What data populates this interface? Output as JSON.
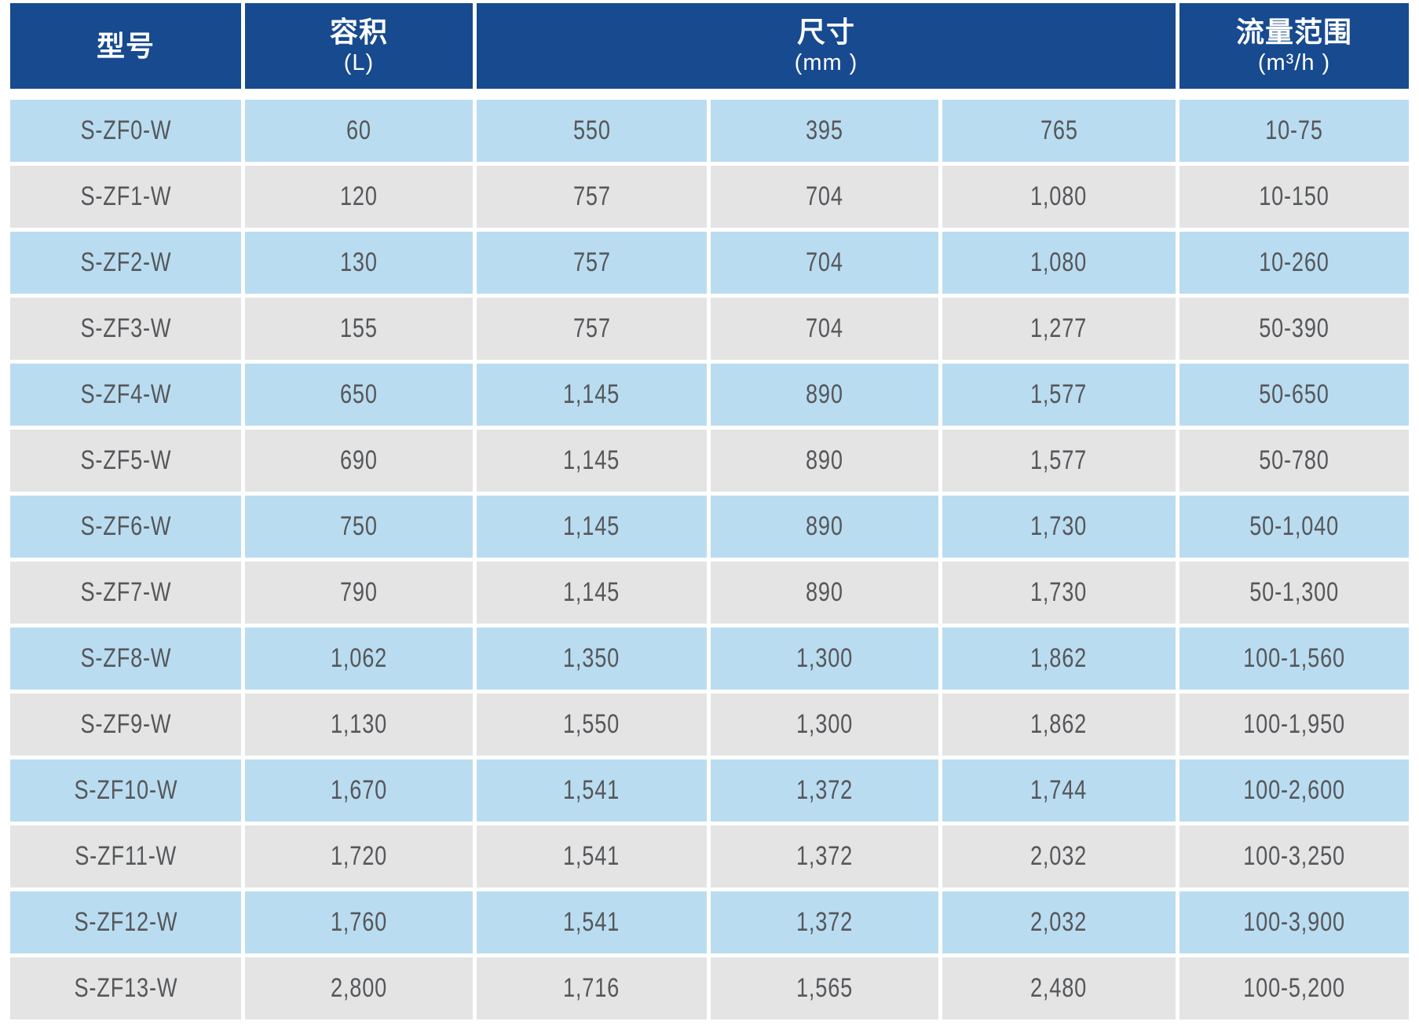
{
  "colors": {
    "header_bg": "#174a8f",
    "header_text": "#ffffff",
    "row_blue": "#badcf0",
    "row_gray": "#e4e4e4",
    "cell_text": "#55575a",
    "page_bg": "#ffffff"
  },
  "chart_data": {
    "type": "table",
    "columns": [
      {
        "label": "型号",
        "sublabel": ""
      },
      {
        "label": "容积",
        "sublabel": "(L)"
      },
      {
        "label": "尺寸",
        "sublabel": "(mm )",
        "span": 3
      },
      {
        "label": "流量范围",
        "sublabel": "(m³/h )"
      }
    ],
    "rows": [
      {
        "model": "S-ZF0-W",
        "volume": "60",
        "dim1": "550",
        "dim2": "395",
        "dim3": "765",
        "flow": "10-75"
      },
      {
        "model": "S-ZF1-W",
        "volume": "120",
        "dim1": "757",
        "dim2": "704",
        "dim3": "1,080",
        "flow": "10-150"
      },
      {
        "model": "S-ZF2-W",
        "volume": "130",
        "dim1": "757",
        "dim2": "704",
        "dim3": "1,080",
        "flow": "10-260"
      },
      {
        "model": "S-ZF3-W",
        "volume": "155",
        "dim1": "757",
        "dim2": "704",
        "dim3": "1,277",
        "flow": "50-390"
      },
      {
        "model": "S-ZF4-W",
        "volume": "650",
        "dim1": "1,145",
        "dim2": "890",
        "dim3": "1,577",
        "flow": "50-650"
      },
      {
        "model": "S-ZF5-W",
        "volume": "690",
        "dim1": "1,145",
        "dim2": "890",
        "dim3": "1,577",
        "flow": "50-780"
      },
      {
        "model": "S-ZF6-W",
        "volume": "750",
        "dim1": "1,145",
        "dim2": "890",
        "dim3": "1,730",
        "flow": "50-1,040"
      },
      {
        "model": "S-ZF7-W",
        "volume": "790",
        "dim1": "1,145",
        "dim2": "890",
        "dim3": "1,730",
        "flow": "50-1,300"
      },
      {
        "model": "S-ZF8-W",
        "volume": "1,062",
        "dim1": "1,350",
        "dim2": "1,300",
        "dim3": "1,862",
        "flow": "100-1,560"
      },
      {
        "model": "S-ZF9-W",
        "volume": "1,130",
        "dim1": "1,550",
        "dim2": "1,300",
        "dim3": "1,862",
        "flow": "100-1,950"
      },
      {
        "model": "S-ZF10-W",
        "volume": "1,670",
        "dim1": "1,541",
        "dim2": "1,372",
        "dim3": "1,744",
        "flow": "100-2,600"
      },
      {
        "model": "S-ZF11-W",
        "volume": "1,720",
        "dim1": "1,541",
        "dim2": "1,372",
        "dim3": "2,032",
        "flow": "100-3,250"
      },
      {
        "model": "S-ZF12-W",
        "volume": "1,760",
        "dim1": "1,541",
        "dim2": "1,372",
        "dim3": "2,032",
        "flow": "100-3,900"
      },
      {
        "model": "S-ZF13-W",
        "volume": "2,800",
        "dim1": "1,716",
        "dim2": "1,565",
        "dim3": "2,480",
        "flow": "100-5,200"
      }
    ]
  }
}
